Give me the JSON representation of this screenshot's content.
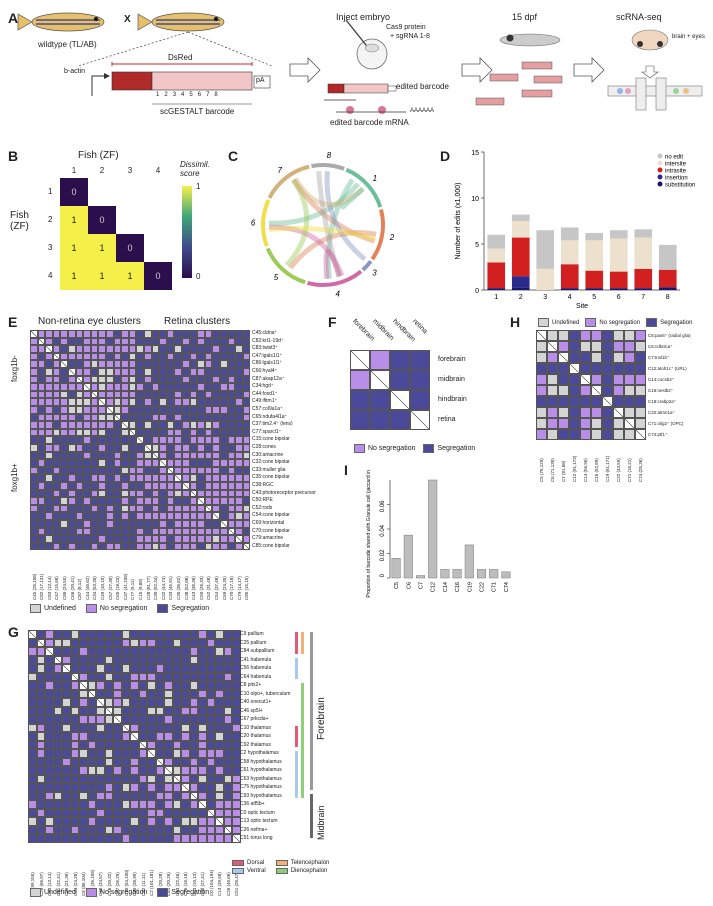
{
  "panels": {
    "A": {
      "label": "A",
      "wildtype": "wildtype (TL/AB)",
      "cross": "X",
      "dsred": "DsRed",
      "bactin": "b-actin",
      "pA": "pA",
      "barcode_sites": [
        "1",
        "2",
        "3",
        "4",
        "5",
        "6",
        "7",
        "8"
      ],
      "barcode_label": "scGESTALT barcode",
      "inject": "Inject embryo",
      "cas9": "Cas9 protein",
      "sgrna": "+ sgRNA 1-8",
      "edited_barcode": "edited barcode",
      "edited_mrna": "edited barcode mRNA",
      "polyA": "AAAAAA",
      "dpf": "15 dpf",
      "scrna": "scRNA-seq",
      "brain_eyes": "brain + eyes"
    },
    "B": {
      "label": "B",
      "top_title": "Fish (ZF)",
      "left_title": "Fish (ZF)",
      "fish": [
        "1",
        "2",
        "3",
        "4"
      ],
      "matrix": [
        [
          "0",
          "",
          "",
          ""
        ],
        [
          "1",
          "0",
          "",
          ""
        ],
        [
          "1",
          "1",
          "0",
          ""
        ],
        [
          "1",
          "1",
          "1",
          "0"
        ]
      ],
      "colorbar_title": "Dissimil. score",
      "colorbar_max": "1",
      "colorbar_min": "0"
    },
    "C": {
      "label": "C",
      "sites": [
        "1",
        "2",
        "3",
        "4",
        "5",
        "6",
        "7",
        "8"
      ],
      "colors": [
        "#6dbf9a",
        "#e0825a",
        "#8c96c6",
        "#d16ba5",
        "#9ccb5a",
        "#f2dd4a",
        "#d2b27a",
        "#aaaaaa"
      ]
    },
    "D": {
      "label": "D"
    },
    "E": {
      "label": "E",
      "title_left": "Non-retina eye clusters",
      "title_right": "Retina clusters",
      "group_top": "foxg1b-",
      "group_bottom": "foxg1b+",
      "rows": [
        "C45:cldna⁺",
        "C82:krt1-19d⁺",
        "C83:twist3⁺",
        "C47:lgals1l1⁺",
        "C86:lgals1l1⁺",
        "C66:hyal4⁺",
        "C87:akap12a⁺",
        "C34:hgd⁺",
        "C44:foxd1⁺",
        "C49:ifitm1⁺",
        "C57:col9a1a⁺",
        "C65:ndufa4l1a⁺",
        "C37:tim2.4⁺ (lens)",
        "C77:sparcl1⁺",
        "C15:cone bipolar",
        "C28:cones",
        "C30:amacrine",
        "C32:cone bipolar",
        "C33:muller glia",
        "C35:cone bipolar",
        "C38:RGC",
        "C43:photoreceptor precursor",
        "C50:RPE",
        "C52:rods",
        "C54:cone bipolar",
        "C69:horizontal",
        "C70:cone bipolar",
        "C79:amacrine",
        "C85:cone bipolar"
      ],
      "cols": [
        "C45 (25,108)",
        "C82 (17,131)",
        "C83 (13,14)",
        "C47 (15,68)",
        "C86 (24,55)",
        "C66 (20,41)",
        "C87 (8,12)",
        "C44 (46,62)",
        "C34 (53,30)",
        "C49 (10,10)",
        "C57 (27,30)",
        "C65 (18,23)",
        "C37 (41,109)",
        "C77 (9,11)",
        "C15 (9,88)",
        "C28 (81,77)",
        "C30 (52,34)",
        "C32 (44,74)",
        "C33 (45,91)",
        "C35 (36,62)",
        "C38 (52,88)",
        "C43 (36,36)",
        "C50 (26,33)",
        "C52 (31,48)",
        "C54 (37,48)",
        "C69 (24,35)",
        "C70 (17,18)",
        "C79 (14,17)",
        "C85 (15,15)"
      ],
      "legend": [
        "Undefined",
        "No segregation",
        "Segregation"
      ]
    },
    "F": {
      "label": "F",
      "regions": [
        "forebrain",
        "midbrain",
        "hindbrain",
        "retina"
      ],
      "legend": [
        "No segregation",
        "Segregation"
      ]
    },
    "G": {
      "label": "G",
      "rows": [
        "C9 pallium",
        "C25 pallium",
        "C84 subpallium",
        "C41 habenula",
        "C56 habenula",
        "C64 habenula",
        "C8 pitx2+",
        "C10 olpo+, tuberculum",
        "C40 onecut1+",
        "C46 sp5l+",
        "C67 prkcda+",
        "C10 thalamus",
        "C20 thalamus",
        "C92 thalamus",
        "C2 hypothalamus",
        "C58 hypothalamus",
        "C61 hypothalamus",
        "C63 hypothalamus",
        "C75 hypothalamus",
        "C93 hypothalamus",
        "C36 atf5b+",
        "C0 optic tectum",
        "C13 optic tectum",
        "C26 nefma+",
        "C51 torus long"
      ],
      "cols": [
        "C9 (99,155)",
        "C25 (66,97)",
        "C84 (13,14)",
        "C41 (32,41)",
        "C56 (21,36)",
        "C64 (24,28)",
        "C8 (86,104)",
        "C10 (36,109)",
        "C40 (34,57)",
        "C46 (20,32)",
        "C67 (26,29)",
        "C10 (54,100)",
        "C20 (38,90)",
        "C92 (11,11)",
        "C2 (101,181)",
        "C58 (20,28)",
        "C61 (20,26)",
        "C63 (22,46)",
        "C75 (16,18)",
        "C93 (10,13)",
        "C36 (27,41)",
        "C0 (104,194)",
        "C13 (39,58)",
        "C26 (46,66)",
        "C51 (26,47)"
      ],
      "bracket_forebrain": "Forebrain",
      "bracket_midbrain": "Midbrain",
      "legend": [
        "Undefined",
        "No segregation",
        "Segregation"
      ],
      "legend2": {
        "dorsal": "Dorsal",
        "ventral": "Ventral",
        "telen": "Telencephalon",
        "dien": "Diencephalon"
      }
    },
    "H": {
      "label": "H",
      "legend": [
        "Undefined",
        "No segregation",
        "Segregation"
      ],
      "rows": [
        "C5:pax6⁺ (radial glia)",
        "C6:cdknlca⁺",
        "C7:tnsl1b⁺",
        "C12:atoh1c⁺ (URL)",
        "C14:cocsb2⁺",
        "C16:neslb2⁺",
        "C19:crabp2a⁺",
        "C22:atmn1a⁺",
        "C71:olig2⁺ (OPC)",
        "C74:ptf1⁺"
      ],
      "cols": [
        "C5 (76,129)",
        "C6 (71,130)",
        "C7 (81,68)",
        "C12 (91,173)",
        "C14 (56,96)",
        "C16 (52,89)",
        "C19 (61,171)",
        "C22 (43,59)",
        "C71 (16,21)",
        "C74 (25,36)"
      ]
    },
    "I": {
      "label": "I",
      "ylabel": "Proportion of barcode shared with Granule cell (jaccard index)",
      "yticks": [
        "0",
        "0.02",
        "0.04",
        "0.06"
      ]
    }
  },
  "chart_data": [
    {
      "type": "bar",
      "panel": "D",
      "stacked": true,
      "title": "",
      "xlabel": "Site",
      "ylabel": "Number of edits (x1,000)",
      "categories": [
        "1",
        "2",
        "3",
        "4",
        "5",
        "6",
        "7",
        "8"
      ],
      "ylim": [
        0,
        15
      ],
      "yticks": [
        "0",
        "5",
        "10",
        "15"
      ],
      "legend_position": "top-right",
      "series": [
        {
          "name": "substitution",
          "color": "#1a1670",
          "values": [
            0.2,
            0.3,
            0.0,
            0.2,
            0.2,
            0.2,
            0.2,
            0.3
          ]
        },
        {
          "name": "insertion",
          "color": "#2b2a8a",
          "values": [
            0.0,
            1.2,
            0.0,
            0.0,
            0.0,
            0.0,
            0.0,
            0.0
          ]
        },
        {
          "name": "intrasite",
          "color": "#d21f1f",
          "values": [
            2.8,
            4.2,
            0.0,
            2.6,
            1.9,
            1.8,
            2.1,
            1.9
          ]
        },
        {
          "name": "intersite",
          "color": "#ece1cc",
          "values": [
            1.5,
            1.8,
            2.3,
            2.6,
            3.3,
            3.6,
            3.4,
            0.0
          ]
        },
        {
          "name": "no edit",
          "color": "#c6c6c6",
          "values": [
            1.5,
            0.7,
            4.2,
            1.4,
            0.8,
            0.9,
            0.9,
            2.7
          ]
        }
      ]
    },
    {
      "type": "bar",
      "panel": "I",
      "title": "",
      "xlabel": "",
      "ylabel": "Proportion of barcode shared with Granule cell (jaccard index)",
      "categories": [
        "C5",
        "C6",
        "C7",
        "C12",
        "C14",
        "C16",
        "C19",
        "C22",
        "C71",
        "C74"
      ],
      "values": [
        0.016,
        0.035,
        0.002,
        0.08,
        0.007,
        0.007,
        0.027,
        0.007,
        0.007,
        0.005
      ],
      "ylim": [
        0,
        0.08
      ],
      "yticks": [
        "0",
        "0.02",
        "0.04",
        "0.06"
      ]
    }
  ],
  "colors": {
    "segregation": "#4b4a9a",
    "no_segregation": "#b98ee8",
    "undefined": "#d4d4d4"
  }
}
